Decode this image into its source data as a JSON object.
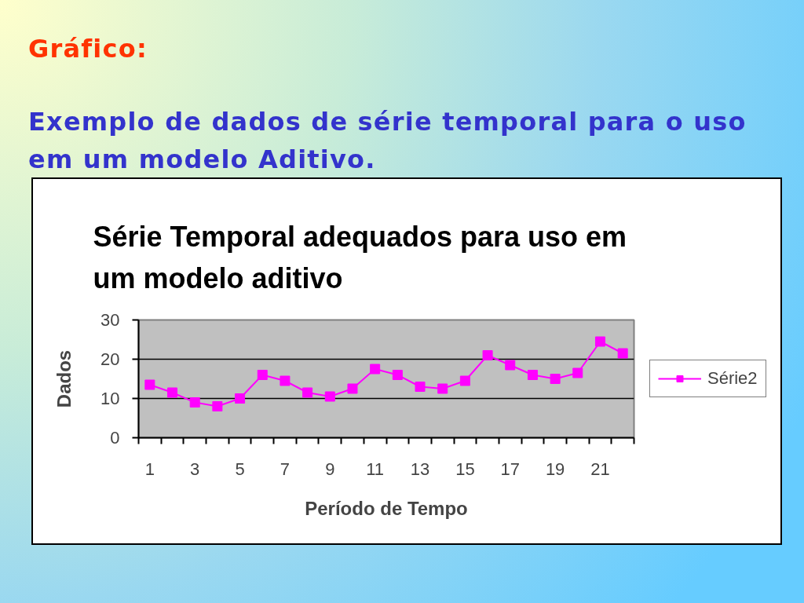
{
  "chart_data": {
    "type": "line",
    "title": "Série Temporal adequados para uso em um modelo aditivo",
    "xlabel": "Período de Tempo",
    "ylabel": "Dados",
    "annotations": [
      "Gráfico:",
      "Exemplo de dados de série temporal para o uso em um modelo Aditivo."
    ],
    "x": [
      1,
      2,
      3,
      4,
      5,
      6,
      7,
      8,
      9,
      10,
      11,
      12,
      13,
      14,
      15,
      16,
      17,
      18,
      19,
      20,
      21,
      22
    ],
    "series": [
      {
        "name": "Série2",
        "color": "#ff00ff",
        "values": [
          13.5,
          11.5,
          9,
          8,
          10,
          16,
          14.5,
          11.5,
          10.5,
          12.5,
          17.5,
          16,
          13,
          12.5,
          14.5,
          21,
          18.5,
          16,
          15,
          16.5,
          24.5,
          21.5
        ]
      }
    ],
    "xlim": [
      0.5,
      22.5
    ],
    "xticks": [
      1,
      3,
      5,
      7,
      9,
      11,
      13,
      15,
      17,
      19,
      21
    ],
    "ylim": [
      0,
      30
    ],
    "yticks": [
      0,
      10,
      20,
      30
    ],
    "grid": "y",
    "legend": "right",
    "marker": "square",
    "line_style": "solid"
  }
}
